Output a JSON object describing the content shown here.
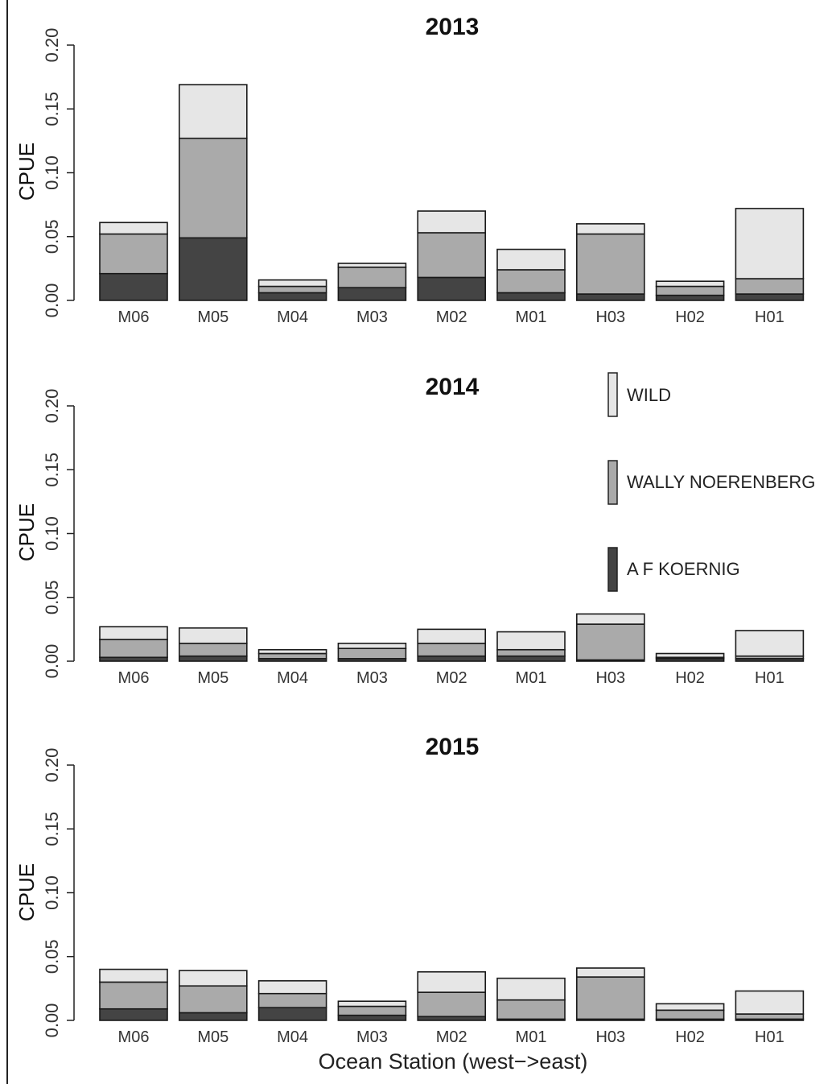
{
  "chart_data": [
    {
      "type": "bar",
      "stacked": true,
      "title": "2013",
      "ylabel": "CPUE",
      "xlabel": "",
      "ylim": [
        0,
        0.2
      ],
      "yticks": [
        "0.00",
        "0.05",
        "0.10",
        "0.15",
        "0.20"
      ],
      "categories": [
        "M06",
        "M05",
        "M04",
        "M03",
        "M02",
        "M01",
        "H03",
        "H02",
        "H01"
      ],
      "series": [
        {
          "name": "A F KOERNIG",
          "color": "#444444",
          "values": [
            0.021,
            0.049,
            0.006,
            0.01,
            0.018,
            0.006,
            0.005,
            0.004,
            0.005
          ]
        },
        {
          "name": "WALLY NOERENBERG",
          "color": "#aaaaaa",
          "values": [
            0.031,
            0.078,
            0.005,
            0.016,
            0.035,
            0.018,
            0.047,
            0.007,
            0.012
          ]
        },
        {
          "name": "WILD",
          "color": "#e6e6e6",
          "values": [
            0.009,
            0.042,
            0.005,
            0.003,
            0.017,
            0.016,
            0.008,
            0.004,
            0.055
          ]
        }
      ]
    },
    {
      "type": "bar",
      "stacked": true,
      "title": "2014",
      "ylabel": "CPUE",
      "xlabel": "",
      "ylim": [
        0,
        0.2
      ],
      "yticks": [
        "0.00",
        "0.05",
        "0.10",
        "0.15",
        "0.20"
      ],
      "categories": [
        "M06",
        "M05",
        "M04",
        "M03",
        "M02",
        "M01",
        "H03",
        "H02",
        "H01"
      ],
      "series": [
        {
          "name": "A F KOERNIG",
          "color": "#444444",
          "values": [
            0.003,
            0.004,
            0.002,
            0.002,
            0.004,
            0.004,
            0.001,
            0.002,
            0.002
          ]
        },
        {
          "name": "WALLY NOERENBERG",
          "color": "#aaaaaa",
          "values": [
            0.014,
            0.01,
            0.004,
            0.008,
            0.01,
            0.005,
            0.028,
            0.001,
            0.002
          ]
        },
        {
          "name": "WILD",
          "color": "#e6e6e6",
          "values": [
            0.01,
            0.012,
            0.003,
            0.004,
            0.011,
            0.014,
            0.008,
            0.003,
            0.02
          ]
        }
      ]
    },
    {
      "type": "bar",
      "stacked": true,
      "title": "2015",
      "ylabel": "CPUE",
      "xlabel": "Ocean Station (west−>east)",
      "ylim": [
        0,
        0.2
      ],
      "yticks": [
        "0.00",
        "0.05",
        "0.10",
        "0.15",
        "0.20"
      ],
      "categories": [
        "M06",
        "M05",
        "M04",
        "M03",
        "M02",
        "M01",
        "H03",
        "H02",
        "H01"
      ],
      "series": [
        {
          "name": "A F KOERNIG",
          "color": "#444444",
          "values": [
            0.009,
            0.006,
            0.01,
            0.004,
            0.003,
            0.001,
            0.001,
            0.001,
            0.001
          ]
        },
        {
          "name": "WALLY NOERENBERG",
          "color": "#aaaaaa",
          "values": [
            0.021,
            0.021,
            0.011,
            0.007,
            0.019,
            0.015,
            0.033,
            0.007,
            0.004
          ]
        },
        {
          "name": "WILD",
          "color": "#e6e6e6",
          "values": [
            0.01,
            0.012,
            0.01,
            0.004,
            0.016,
            0.017,
            0.007,
            0.005,
            0.018
          ]
        }
      ]
    }
  ],
  "legend": {
    "placement": "right of 2014 panel",
    "entries": [
      {
        "label": "WILD",
        "color": "#e6e6e6"
      },
      {
        "label": "WALLY NOERENBERG",
        "color": "#aaaaaa"
      },
      {
        "label": "A F KOERNIG",
        "color": "#444444"
      }
    ]
  }
}
